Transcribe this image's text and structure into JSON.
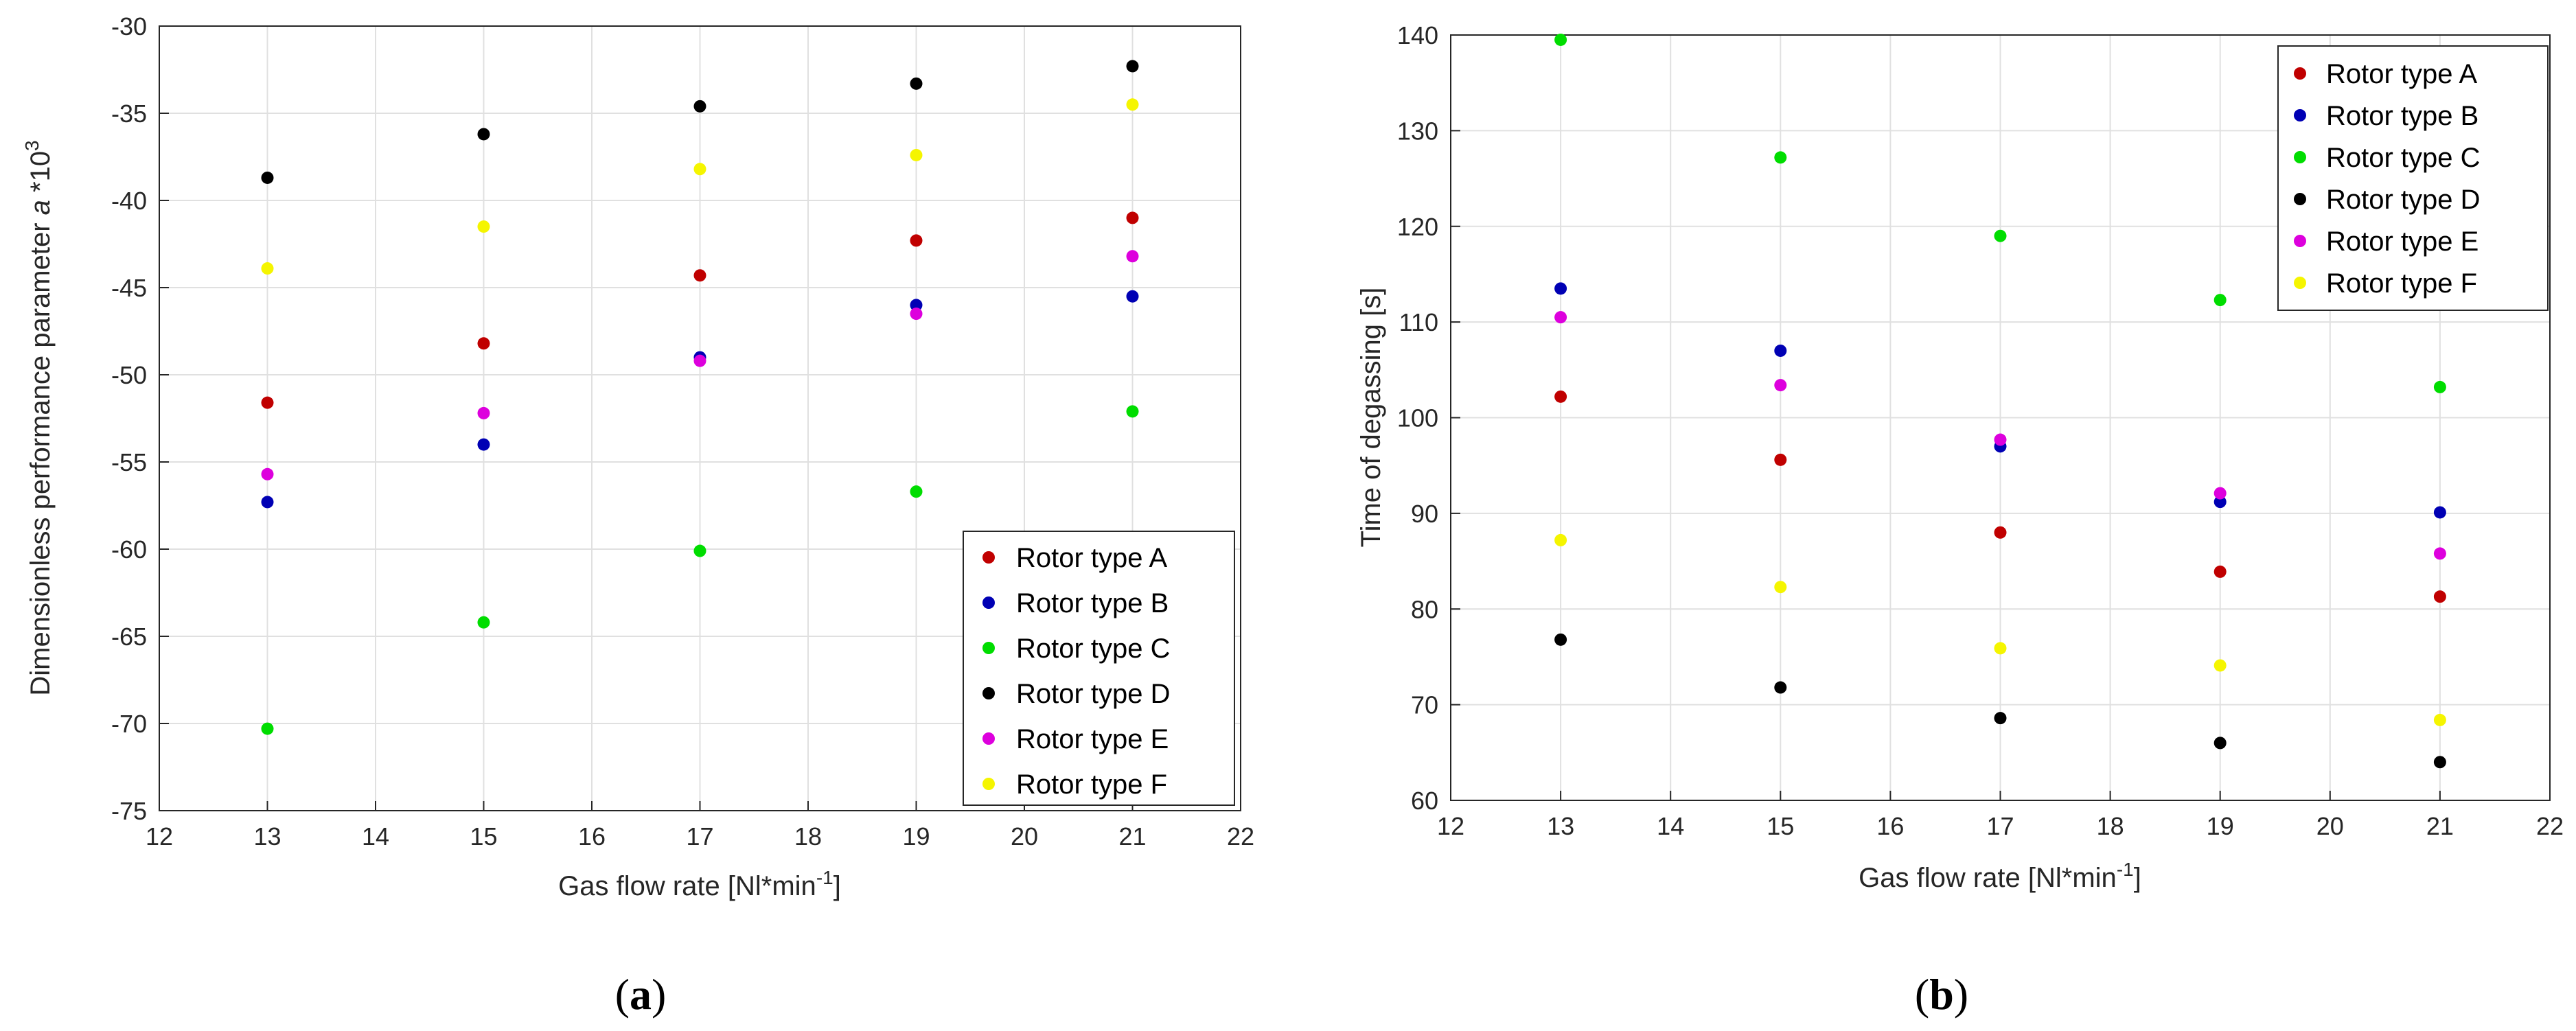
{
  "chart_data": [
    {
      "type": "scatter",
      "panel_caption": {
        "open": "(",
        "letter": "a",
        "close": ")"
      },
      "xlabel": {
        "text": "Gas flow rate [Nl*min",
        "sup": "-1",
        "tail": "]"
      },
      "ylabel": {
        "pre": "Dimensionless performance parameter ",
        "ital": "a",
        "post": " *10",
        "sup": "3"
      },
      "xlim": [
        12,
        22
      ],
      "ylim": [
        -75,
        -30
      ],
      "xticks": [
        12,
        13,
        14,
        15,
        16,
        17,
        18,
        19,
        20,
        21,
        22
      ],
      "yticks": [
        -75,
        -70,
        -65,
        -60,
        -55,
        -50,
        -45,
        -40,
        -35,
        -30
      ],
      "grid": true,
      "legend_position": "bottom-right",
      "x": [
        13,
        15,
        17,
        19,
        21
      ],
      "series": [
        {
          "name": "Rotor type A",
          "color": "#c00000",
          "values": [
            -51.6,
            -48.2,
            -44.3,
            -42.3,
            -41.0
          ]
        },
        {
          "name": "Rotor type B",
          "color": "#0000b4",
          "values": [
            -57.3,
            -54.0,
            -49.0,
            -46.0,
            -45.5
          ]
        },
        {
          "name": "Rotor type C",
          "color": "#00dd00",
          "values": [
            -70.3,
            -64.2,
            -60.1,
            -56.7,
            -52.1
          ]
        },
        {
          "name": "Rotor type D",
          "color": "#000000",
          "values": [
            -38.7,
            -36.2,
            -34.6,
            -33.3,
            -32.3
          ]
        },
        {
          "name": "Rotor type E",
          "color": "#dd00dd",
          "values": [
            -55.7,
            -52.2,
            -49.2,
            -46.5,
            -43.2
          ]
        },
        {
          "name": "Rotor type F",
          "color": "#f5f500",
          "values": [
            -43.9,
            -41.5,
            -38.2,
            -37.4,
            -34.5
          ]
        }
      ]
    },
    {
      "type": "scatter",
      "panel_caption": {
        "open": "(",
        "letter": "b",
        "close": ")"
      },
      "xlabel": {
        "text": "Gas flow rate [Nl*min",
        "sup": "-1",
        "tail": "]"
      },
      "ylabel": {
        "text": "Time of degassing [s]"
      },
      "xlim": [
        12,
        22
      ],
      "ylim": [
        60,
        140
      ],
      "xticks": [
        12,
        13,
        14,
        15,
        16,
        17,
        18,
        19,
        20,
        21,
        22
      ],
      "yticks": [
        60,
        70,
        80,
        90,
        100,
        110,
        120,
        130,
        140
      ],
      "grid": true,
      "legend_position": "top-right",
      "x": [
        13,
        15,
        17,
        19,
        21
      ],
      "series": [
        {
          "name": "Rotor type A",
          "color": "#c00000",
          "values": [
            102.2,
            95.6,
            88.0,
            83.9,
            81.3
          ]
        },
        {
          "name": "Rotor type B",
          "color": "#0000b4",
          "values": [
            113.5,
            107.0,
            97.0,
            91.2,
            90.1
          ]
        },
        {
          "name": "Rotor type C",
          "color": "#00dd00",
          "values": [
            139.5,
            127.2,
            119.0,
            112.3,
            103.2
          ]
        },
        {
          "name": "Rotor type D",
          "color": "#000000",
          "values": [
            76.8,
            71.8,
            68.6,
            66.0,
            64.0
          ]
        },
        {
          "name": "Rotor type E",
          "color": "#dd00dd",
          "values": [
            110.5,
            103.4,
            97.7,
            92.1,
            85.8
          ]
        },
        {
          "name": "Rotor type F",
          "color": "#f5f500",
          "values": [
            87.2,
            82.3,
            75.9,
            74.1,
            68.4
          ]
        }
      ]
    }
  ]
}
